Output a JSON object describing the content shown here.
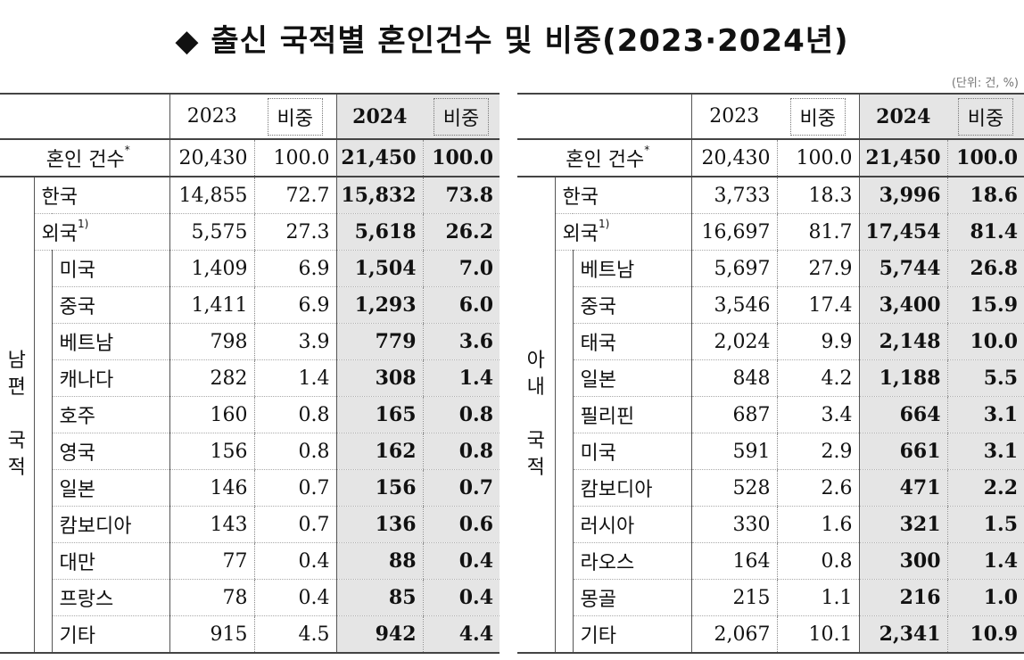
{
  "title": "◆ 출신 국적별 혼인건수 및 비중(2023·2024년)",
  "unit": "(단위: 건, %)",
  "headers": {
    "y2023": "2023",
    "share": "비중",
    "y2024": "2024"
  },
  "left": {
    "group_label": [
      "남",
      "편",
      "",
      "국",
      "적"
    ],
    "total": {
      "label": "혼인 건수",
      "sup": "*",
      "v2023": "20,430",
      "s2023": "100.0",
      "v2024": "21,450",
      "s2024": "100.0"
    },
    "korea": {
      "label": "한국",
      "v2023": "14,855",
      "s2023": "72.7",
      "v2024": "15,832",
      "s2024": "73.8"
    },
    "foreign": {
      "label": "외국",
      "sup": "1)",
      "v2023": "5,575",
      "s2023": "27.3",
      "v2024": "5,618",
      "s2024": "26.2"
    },
    "countries": [
      {
        "name": "미국",
        "v2023": "1,409",
        "s2023": "6.9",
        "v2024": "1,504",
        "s2024": "7.0"
      },
      {
        "name": "중국",
        "v2023": "1,411",
        "s2023": "6.9",
        "v2024": "1,293",
        "s2024": "6.0"
      },
      {
        "name": "베트남",
        "v2023": "798",
        "s2023": "3.9",
        "v2024": "779",
        "s2024": "3.6"
      },
      {
        "name": "캐나다",
        "v2023": "282",
        "s2023": "1.4",
        "v2024": "308",
        "s2024": "1.4"
      },
      {
        "name": "호주",
        "v2023": "160",
        "s2023": "0.8",
        "v2024": "165",
        "s2024": "0.8"
      },
      {
        "name": "영국",
        "v2023": "156",
        "s2023": "0.8",
        "v2024": "162",
        "s2024": "0.8"
      },
      {
        "name": "일본",
        "v2023": "146",
        "s2023": "0.7",
        "v2024": "156",
        "s2024": "0.7"
      },
      {
        "name": "캄보디아",
        "v2023": "143",
        "s2023": "0.7",
        "v2024": "136",
        "s2024": "0.6"
      },
      {
        "name": "대만",
        "v2023": "77",
        "s2023": "0.4",
        "v2024": "88",
        "s2024": "0.4"
      },
      {
        "name": "프랑스",
        "v2023": "78",
        "s2023": "0.4",
        "v2024": "85",
        "s2024": "0.4"
      },
      {
        "name": "기타",
        "v2023": "915",
        "s2023": "4.5",
        "v2024": "942",
        "s2024": "4.4"
      }
    ]
  },
  "right": {
    "group_label": [
      "아",
      "내",
      "",
      "국",
      "적"
    ],
    "total": {
      "label": "혼인 건수",
      "sup": "*",
      "v2023": "20,430",
      "s2023": "100.0",
      "v2024": "21,450",
      "s2024": "100.0"
    },
    "korea": {
      "label": "한국",
      "v2023": "3,733",
      "s2023": "18.3",
      "v2024": "3,996",
      "s2024": "18.6"
    },
    "foreign": {
      "label": "외국",
      "sup": "1)",
      "v2023": "16,697",
      "s2023": "81.7",
      "v2024": "17,454",
      "s2024": "81.4"
    },
    "countries": [
      {
        "name": "베트남",
        "v2023": "5,697",
        "s2023": "27.9",
        "v2024": "5,744",
        "s2024": "26.8"
      },
      {
        "name": "중국",
        "v2023": "3,546",
        "s2023": "17.4",
        "v2024": "3,400",
        "s2024": "15.9"
      },
      {
        "name": "태국",
        "v2023": "2,024",
        "s2023": "9.9",
        "v2024": "2,148",
        "s2024": "10.0"
      },
      {
        "name": "일본",
        "v2023": "848",
        "s2023": "4.2",
        "v2024": "1,188",
        "s2024": "5.5"
      },
      {
        "name": "필리핀",
        "v2023": "687",
        "s2023": "3.4",
        "v2024": "664",
        "s2024": "3.1"
      },
      {
        "name": "미국",
        "v2023": "591",
        "s2023": "2.9",
        "v2024": "661",
        "s2024": "3.1"
      },
      {
        "name": "캄보디아",
        "v2023": "528",
        "s2023": "2.6",
        "v2024": "471",
        "s2024": "2.2"
      },
      {
        "name": "러시아",
        "v2023": "330",
        "s2023": "1.6",
        "v2024": "321",
        "s2024": "1.5"
      },
      {
        "name": "라오스",
        "v2023": "164",
        "s2023": "0.8",
        "v2024": "300",
        "s2024": "1.4"
      },
      {
        "name": "몽골",
        "v2023": "215",
        "s2023": "1.1",
        "v2024": "216",
        "s2024": "1.0"
      },
      {
        "name": "기타",
        "v2023": "2,067",
        "s2023": "10.1",
        "v2024": "2,341",
        "s2024": "10.9"
      }
    ]
  }
}
